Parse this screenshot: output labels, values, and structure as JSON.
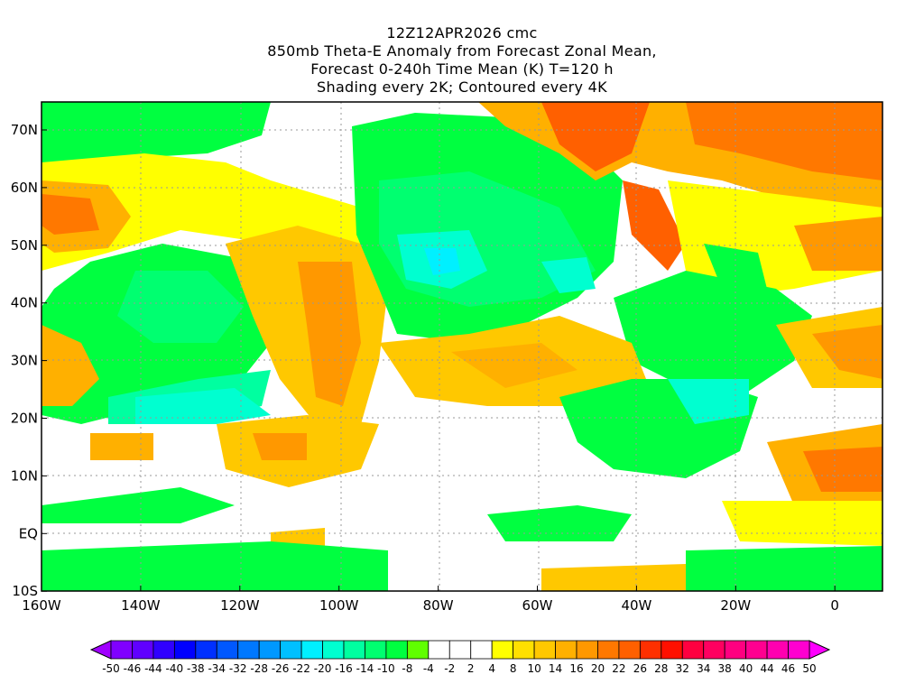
{
  "title": {
    "line1": "12Z12APR2026 cmc",
    "line2": "850mb Theta-E Anomaly from Forecast Zonal Mean,",
    "line3": "Forecast 0-240h Time Mean (K) T=120 h",
    "line4": "Shading every 2K; Contoured every 4K"
  },
  "axes": {
    "lat_labels": [
      "70N",
      "60N",
      "50N",
      "40N",
      "30N",
      "20N",
      "10N",
      "EQ",
      "10S"
    ],
    "lon_labels": [
      "160W",
      "140W",
      "120W",
      "100W",
      "80W",
      "60W",
      "40W",
      "20W",
      "0"
    ]
  },
  "colorbar": {
    "labels": [
      "-50",
      "-46",
      "-44",
      "-40",
      "-38",
      "-34",
      "-32",
      "-28",
      "-26",
      "-22",
      "-20",
      "-16",
      "-14",
      "-10",
      "-8",
      "-4",
      "-2",
      "2",
      "4",
      "8",
      "10",
      "14",
      "16",
      "20",
      "22",
      "26",
      "28",
      "32",
      "34",
      "38",
      "40",
      "44",
      "46",
      "50"
    ],
    "low_arrow_color": "#a000ff",
    "high_arrow_color": "#ff00ff",
    "colors": [
      "#8000ff",
      "#6000ff",
      "#3000ff",
      "#0000ff",
      "#0030ff",
      "#0058ff",
      "#0078ff",
      "#0098ff",
      "#00c0ff",
      "#00f0ff",
      "#00ffd0",
      "#00ffa0",
      "#00ff70",
      "#00ff40",
      "#60ff00",
      "#ffffff",
      "#ffffff",
      "#ffffff",
      "#ffff00",
      "#ffe000",
      "#ffc800",
      "#ffb000",
      "#ff9800",
      "#ff7800",
      "#ff6000",
      "#ff3000",
      "#ff1000",
      "#ff0040",
      "#ff0060",
      "#ff0080",
      "#ff0090",
      "#ff00b0",
      "#ff00d0"
    ]
  }
}
